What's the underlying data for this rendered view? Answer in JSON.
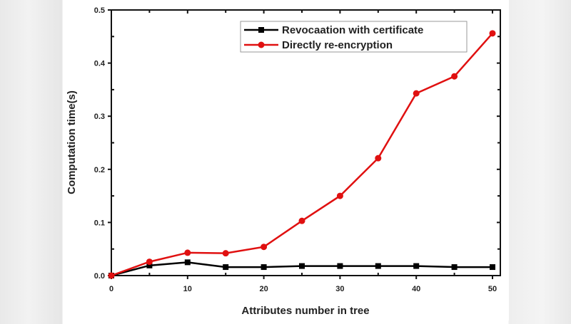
{
  "chart_data": {
    "type": "line",
    "title": "",
    "xlabel": "Attributes number in tree",
    "ylabel": "Computation time(s)",
    "xlim": [
      0,
      51
    ],
    "ylim": [
      0,
      0.5
    ],
    "x": [
      0,
      5,
      10,
      15,
      20,
      25,
      30,
      35,
      40,
      45,
      50
    ],
    "x_ticks": [
      0,
      10,
      20,
      30,
      40,
      50
    ],
    "y_ticks": [
      0.0,
      0.1,
      0.2,
      0.3,
      0.4,
      0.5
    ],
    "y_tick_labels": [
      "0.0",
      "0.1",
      "0.2",
      "0.3",
      "0.4",
      "0.5"
    ],
    "grid": false,
    "legend_position": "upper right",
    "series": [
      {
        "name": "Revocaation with certificate",
        "color": "#000000",
        "marker": "square",
        "values": [
          0.0,
          0.019,
          0.025,
          0.016,
          0.016,
          0.018,
          0.018,
          0.018,
          0.018,
          0.016,
          0.016
        ]
      },
      {
        "name": "Directly re-encryption",
        "color": "#e01010",
        "marker": "circle",
        "values": [
          0.0,
          0.026,
          0.043,
          0.042,
          0.054,
          0.103,
          0.15,
          0.221,
          0.343,
          0.375,
          0.456
        ]
      }
    ]
  }
}
